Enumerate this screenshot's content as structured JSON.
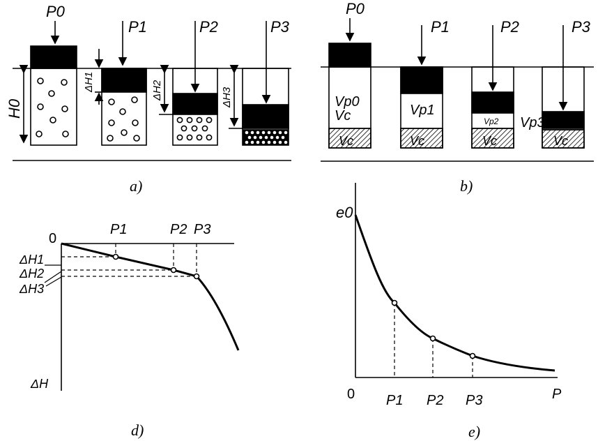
{
  "panel_a": {
    "loads": [
      "P0",
      "P1",
      "P2",
      "P3"
    ],
    "h0": "H0",
    "settlements": [
      "ΔH1",
      "ΔH2",
      "ΔH3"
    ],
    "caption": "a)"
  },
  "panel_b": {
    "loads": [
      "P0",
      "P1",
      "P2",
      "P3"
    ],
    "pore_volumes": [
      "Vp0",
      "Vp1",
      "Vp2",
      "Vp3"
    ],
    "solid_volume": "Vc",
    "caption": "b)"
  },
  "panel_d": {
    "origin": "0",
    "loads": [
      "P1",
      "P2",
      "P3"
    ],
    "settlements": [
      "ΔH1",
      "ΔH2",
      "ΔH3"
    ],
    "y_axis": "ΔH",
    "caption": "d)"
  },
  "panel_e": {
    "y_start": "e0",
    "origin": "0",
    "loads": [
      "P1",
      "P2",
      "P3"
    ],
    "x_axis": "P",
    "caption": "e)"
  }
}
